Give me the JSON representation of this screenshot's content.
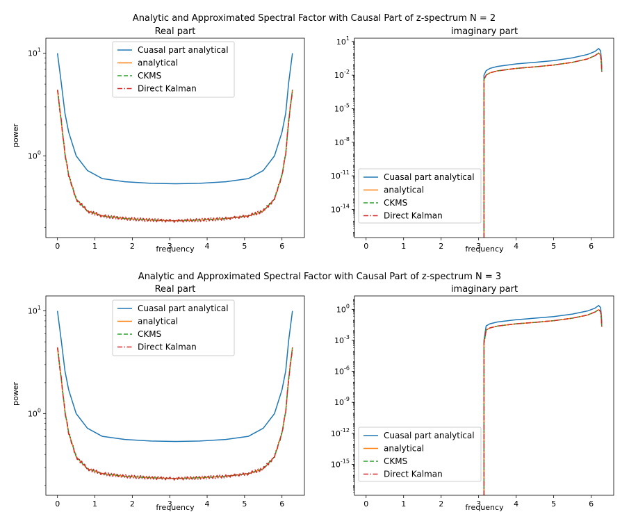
{
  "legend_entries": [
    "Cuasal part analytical",
    "analytical",
    "CKMS",
    "Direct Kalman"
  ],
  "series_colors": [
    "#1f77b4",
    "#ff7f0e",
    "#2ca02c",
    "#d62728"
  ],
  "series_styles": [
    "solid",
    "solid",
    "dashed",
    "dashdot"
  ],
  "chart_data": [
    {
      "type": "line",
      "figure_title": "Analytic and Approximated Spectral Factor with Causal Part of z-spectrum N = 2",
      "title": "Real part",
      "xlabel": "frequency",
      "ylabel": "power",
      "yscale": "log",
      "xlim": [
        -0.31,
        6.6
      ],
      "ylim": [
        0.16,
        14
      ],
      "xticks": [
        0,
        1,
        2,
        3,
        4,
        5,
        6
      ],
      "yticks": [
        {
          "value": 10,
          "base": "10",
          "exp": "1"
        },
        {
          "value": 1,
          "base": "10",
          "exp": "0"
        }
      ],
      "legend_location": "upper center",
      "series": [
        {
          "name": "Cuasal part analytical",
          "x": [
            0,
            0.1,
            0.2,
            0.3,
            0.5,
            0.8,
            1.2,
            1.8,
            2.5,
            3.14,
            3.8,
            4.5,
            5.1,
            5.5,
            5.8,
            6.0,
            6.1,
            6.18,
            6.28
          ],
          "y": [
            10,
            5.2,
            2.6,
            1.7,
            1.0,
            0.72,
            0.6,
            0.56,
            0.54,
            0.535,
            0.54,
            0.56,
            0.6,
            0.72,
            1.0,
            1.7,
            2.6,
            5.2,
            10
          ]
        },
        {
          "name": "analytical",
          "x": [
            0,
            0.1,
            0.2,
            0.3,
            0.5,
            0.8,
            1.2,
            1.8,
            2.5,
            3.14,
            3.8,
            4.5,
            5.1,
            5.5,
            5.8,
            6.0,
            6.1,
            6.18,
            6.28
          ],
          "y": [
            4.4,
            2.2,
            1.05,
            0.65,
            0.38,
            0.29,
            0.26,
            0.245,
            0.237,
            0.233,
            0.237,
            0.245,
            0.26,
            0.29,
            0.38,
            0.65,
            1.05,
            2.2,
            4.4
          ]
        },
        {
          "name": "CKMS",
          "x": [
            0,
            0.1,
            0.2,
            0.3,
            0.5,
            0.8,
            1.2,
            1.8,
            2.5,
            3.14,
            3.8,
            4.5,
            5.1,
            5.5,
            5.8,
            6.0,
            6.1,
            6.18,
            6.28
          ],
          "y": [
            4.4,
            2.2,
            1.05,
            0.65,
            0.38,
            0.29,
            0.26,
            0.245,
            0.237,
            0.233,
            0.237,
            0.245,
            0.26,
            0.29,
            0.38,
            0.65,
            1.05,
            2.2,
            4.4
          ]
        },
        {
          "name": "Direct Kalman",
          "x": [
            0,
            0.1,
            0.2,
            0.3,
            0.5,
            0.8,
            1.2,
            1.8,
            2.5,
            3.14,
            3.8,
            4.5,
            5.1,
            5.5,
            5.8,
            6.0,
            6.1,
            6.18,
            6.28
          ],
          "y": [
            4.4,
            2.2,
            1.05,
            0.65,
            0.38,
            0.29,
            0.26,
            0.245,
            0.237,
            0.233,
            0.237,
            0.245,
            0.26,
            0.29,
            0.38,
            0.65,
            1.05,
            2.2,
            4.4
          ],
          "ripple": 0.035
        }
      ]
    },
    {
      "type": "line",
      "title": "imaginary part",
      "xlabel": "frequency",
      "ylabel": "",
      "yscale": "log",
      "xlim": [
        -0.31,
        6.6
      ],
      "ylim": [
        3e-17,
        20
      ],
      "xticks": [
        0,
        1,
        2,
        3,
        4,
        5,
        6
      ],
      "yticks": [
        {
          "value": 10,
          "base": "10",
          "exp": "1"
        },
        {
          "value": 0.01,
          "base": "10",
          "exp": "-2"
        },
        {
          "value": 1e-05,
          "base": "10",
          "exp": "-5"
        },
        {
          "value": 1e-08,
          "base": "10",
          "exp": "-8"
        },
        {
          "value": 1e-11,
          "base": "10",
          "exp": "-11"
        },
        {
          "value": 1e-14,
          "base": "10",
          "exp": "-14"
        }
      ],
      "legend_location": "lower left",
      "series": [
        {
          "name": "Cuasal part analytical",
          "x": [
            3.1416,
            3.1416,
            3.2,
            3.3,
            3.5,
            4.0,
            4.5,
            5.0,
            5.5,
            5.9,
            6.1,
            6.2,
            6.25,
            6.27,
            6.283
          ],
          "y": [
            3e-17,
            0.01,
            0.025,
            0.04,
            0.06,
            0.1,
            0.14,
            0.2,
            0.35,
            0.7,
            1.3,
            2.4,
            1.5,
            0.3,
            0.05
          ]
        },
        {
          "name": "analytical",
          "x": [
            3.1416,
            3.1416,
            3.2,
            3.3,
            3.5,
            4.0,
            4.5,
            5.0,
            5.5,
            5.9,
            6.1,
            6.2,
            6.25,
            6.27,
            6.283
          ],
          "y": [
            3e-17,
            0.004,
            0.01,
            0.016,
            0.024,
            0.04,
            0.055,
            0.08,
            0.14,
            0.28,
            0.55,
            0.95,
            0.6,
            0.12,
            0.02
          ]
        },
        {
          "name": "CKMS",
          "x": [
            3.1416,
            3.1416,
            3.2,
            3.3,
            3.5,
            4.0,
            4.5,
            5.0,
            5.5,
            5.9,
            6.1,
            6.2,
            6.25,
            6.27,
            6.283
          ],
          "y": [
            3e-17,
            0.004,
            0.01,
            0.016,
            0.024,
            0.04,
            0.055,
            0.08,
            0.14,
            0.28,
            0.55,
            0.95,
            0.6,
            0.12,
            0.02
          ]
        },
        {
          "name": "Direct Kalman",
          "x": [
            3.1416,
            3.1416,
            3.2,
            3.3,
            3.5,
            4.0,
            4.5,
            5.0,
            5.5,
            5.9,
            6.1,
            6.2,
            6.25,
            6.27,
            6.283
          ],
          "y": [
            3e-17,
            0.004,
            0.01,
            0.016,
            0.024,
            0.04,
            0.055,
            0.08,
            0.14,
            0.28,
            0.55,
            0.95,
            0.6,
            0.12,
            0.02
          ]
        }
      ]
    },
    {
      "type": "line",
      "figure_title": "Analytic and Approximated Spectral Factor with Causal Part of z-spectrum N = 3",
      "title": "Real part",
      "xlabel": "frequency",
      "ylabel": "power",
      "yscale": "log",
      "xlim": [
        -0.31,
        6.6
      ],
      "ylim": [
        0.16,
        14
      ],
      "xticks": [
        0,
        1,
        2,
        3,
        4,
        5,
        6
      ],
      "yticks": [
        {
          "value": 10,
          "base": "10",
          "exp": "1"
        },
        {
          "value": 1,
          "base": "10",
          "exp": "0"
        }
      ],
      "legend_location": "upper center",
      "series": [
        {
          "name": "Cuasal part analytical",
          "x": [
            0,
            0.1,
            0.2,
            0.3,
            0.5,
            0.8,
            1.2,
            1.8,
            2.5,
            3.14,
            3.8,
            4.5,
            5.1,
            5.5,
            5.8,
            6.0,
            6.1,
            6.18,
            6.28
          ],
          "y": [
            10,
            5.2,
            2.6,
            1.7,
            1.0,
            0.72,
            0.6,
            0.56,
            0.54,
            0.535,
            0.54,
            0.56,
            0.6,
            0.72,
            1.0,
            1.7,
            2.6,
            5.2,
            10
          ]
        },
        {
          "name": "analytical",
          "x": [
            0,
            0.1,
            0.2,
            0.3,
            0.5,
            0.8,
            1.2,
            1.8,
            2.5,
            3.14,
            3.8,
            4.5,
            5.1,
            5.5,
            5.8,
            6.0,
            6.1,
            6.18,
            6.28
          ],
          "y": [
            4.4,
            2.2,
            1.05,
            0.65,
            0.38,
            0.29,
            0.26,
            0.245,
            0.237,
            0.233,
            0.237,
            0.245,
            0.26,
            0.29,
            0.38,
            0.65,
            1.05,
            2.2,
            4.4
          ]
        },
        {
          "name": "CKMS",
          "x": [
            0,
            0.1,
            0.2,
            0.3,
            0.5,
            0.8,
            1.2,
            1.8,
            2.5,
            3.14,
            3.8,
            4.5,
            5.1,
            5.5,
            5.8,
            6.0,
            6.1,
            6.18,
            6.28
          ],
          "y": [
            4.4,
            2.2,
            1.05,
            0.65,
            0.38,
            0.29,
            0.26,
            0.245,
            0.237,
            0.233,
            0.237,
            0.245,
            0.26,
            0.29,
            0.38,
            0.65,
            1.05,
            2.2,
            4.4
          ]
        },
        {
          "name": "Direct Kalman",
          "x": [
            0,
            0.1,
            0.2,
            0.3,
            0.5,
            0.8,
            1.2,
            1.8,
            2.5,
            3.14,
            3.8,
            4.5,
            5.1,
            5.5,
            5.8,
            6.0,
            6.1,
            6.18,
            6.28
          ],
          "y": [
            4.4,
            2.2,
            1.05,
            0.65,
            0.38,
            0.29,
            0.26,
            0.245,
            0.237,
            0.233,
            0.237,
            0.245,
            0.26,
            0.29,
            0.38,
            0.65,
            1.05,
            2.2,
            4.4
          ],
          "ripple": 0.035
        }
      ]
    },
    {
      "type": "line",
      "title": "imaginary part",
      "xlabel": "frequency",
      "ylabel": "",
      "yscale": "log",
      "xlim": [
        -0.31,
        6.6
      ],
      "ylim": [
        1e-18,
        20
      ],
      "xticks": [
        0,
        1,
        2,
        3,
        4,
        5,
        6
      ],
      "yticks": [
        {
          "value": 1,
          "base": "10",
          "exp": "0"
        },
        {
          "value": 0.001,
          "base": "10",
          "exp": "-3"
        },
        {
          "value": 1e-06,
          "base": "10",
          "exp": "-6"
        },
        {
          "value": 1e-09,
          "base": "10",
          "exp": "-9"
        },
        {
          "value": 1e-12,
          "base": "10",
          "exp": "-12"
        },
        {
          "value": 1e-15,
          "base": "10",
          "exp": "-15"
        }
      ],
      "legend_location": "lower left",
      "series": [
        {
          "name": "Cuasal part analytical",
          "x": [
            3.1416,
            3.1416,
            3.2,
            3.3,
            3.5,
            4.0,
            4.5,
            5.0,
            5.5,
            5.9,
            6.1,
            6.2,
            6.25,
            6.27,
            6.283
          ],
          "y": [
            1e-18,
            0.001,
            0.025,
            0.04,
            0.06,
            0.1,
            0.14,
            0.2,
            0.35,
            0.7,
            1.3,
            2.4,
            1.5,
            0.3,
            0.05
          ]
        },
        {
          "name": "analytical",
          "x": [
            3.1416,
            3.1416,
            3.2,
            3.3,
            3.5,
            4.0,
            4.5,
            5.0,
            5.5,
            5.9,
            6.1,
            6.2,
            6.25,
            6.27,
            6.283
          ],
          "y": [
            1e-18,
            0.0005,
            0.01,
            0.016,
            0.024,
            0.04,
            0.055,
            0.08,
            0.14,
            0.28,
            0.55,
            0.95,
            0.6,
            0.12,
            0.02
          ]
        },
        {
          "name": "CKMS",
          "x": [
            3.1416,
            3.1416,
            3.2,
            3.3,
            3.5,
            4.0,
            4.5,
            5.0,
            5.5,
            5.9,
            6.1,
            6.2,
            6.25,
            6.27,
            6.283
          ],
          "y": [
            1e-18,
            0.0005,
            0.01,
            0.016,
            0.024,
            0.04,
            0.055,
            0.08,
            0.14,
            0.28,
            0.55,
            0.95,
            0.6,
            0.12,
            0.02
          ]
        },
        {
          "name": "Direct Kalman",
          "x": [
            3.1416,
            3.1416,
            3.2,
            3.3,
            3.5,
            4.0,
            4.5,
            5.0,
            5.5,
            5.9,
            6.1,
            6.2,
            6.25,
            6.27,
            6.283
          ],
          "y": [
            1e-18,
            0.0005,
            0.01,
            0.016,
            0.024,
            0.04,
            0.055,
            0.08,
            0.14,
            0.28,
            0.55,
            0.95,
            0.6,
            0.12,
            0.02
          ]
        }
      ]
    }
  ]
}
